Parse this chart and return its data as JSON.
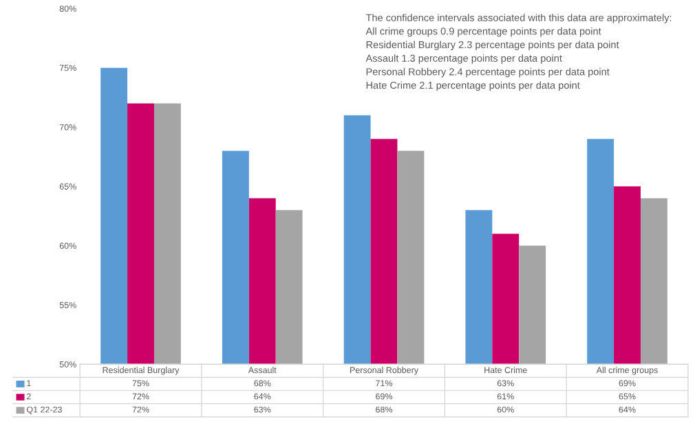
{
  "chart_data": {
    "type": "bar",
    "categories": [
      "Residential Burglary",
      "Assault",
      "Personal Robbery",
      "Hate Crime",
      "All crime groups"
    ],
    "series": [
      {
        "name": "1",
        "color": "#5b9bd5",
        "values": [
          75,
          68,
          71,
          63,
          69
        ],
        "value_labels": [
          "75%",
          "68%",
          "71%",
          "63%",
          "69%"
        ]
      },
      {
        "name": "2",
        "color": "#cc0066",
        "values": [
          72,
          64,
          69,
          61,
          65
        ],
        "value_labels": [
          "72%",
          "64%",
          "69%",
          "61%",
          "65%"
        ]
      },
      {
        "name": "Q1 22-23",
        "color": "#a5a5a5",
        "values": [
          72,
          63,
          68,
          60,
          64
        ],
        "value_labels": [
          "72%",
          "63%",
          "68%",
          "60%",
          "64%"
        ]
      }
    ],
    "ylim": [
      50,
      80
    ],
    "yticks": [
      {
        "value": 50,
        "label": "50%"
      },
      {
        "value": 55,
        "label": "55%"
      },
      {
        "value": 60,
        "label": "60%"
      },
      {
        "value": 65,
        "label": "65%"
      },
      {
        "value": 70,
        "label": "70%"
      },
      {
        "value": 75,
        "label": "75%"
      },
      {
        "value": 80,
        "label": "80%"
      }
    ],
    "grid": false,
    "legend": "bottom left",
    "annotations": [
      "The confidence intervals associated with this data are approximately:",
      "All crime groups 0.9 percentage points per data point",
      "Residential Burglary 2.3 percentage points per data point",
      "Assault 1.3 percentage points per data point",
      "Personal Robbery 2.4 percentage points per data point",
      "Hate Crime 2.1 percentage points per data point"
    ]
  }
}
